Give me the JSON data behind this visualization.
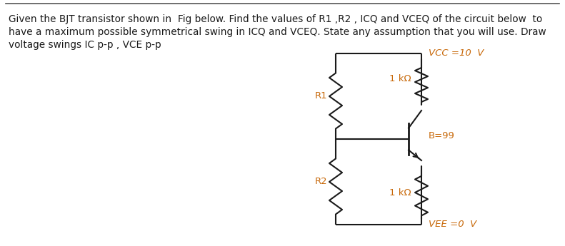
{
  "title_text_line1": "Given the BJT transistor shown in  Fig below. Find the values of R1 ,R2 , ICQ and VCEQ of the circuit below  to",
  "title_text_line2": "have a maximum possible symmetrical swing in ICQ and VCEQ. State any assumption that you will use. Draw",
  "title_text_line3": "voltage swings IC p-p , VCE p-p",
  "background_color": "#ffffff",
  "text_color": "#1a1a1a",
  "circuit_color": "#1a1a1a",
  "vcc_label": "VCC =10  V",
  "vee_label": "VEE =0  V",
  "r1_label": "R1",
  "r2_label": "R2",
  "rc_label": "1 kΩ",
  "re_label": "1 kΩ",
  "bjt_label": "B=99",
  "label_color": "#c8690a",
  "font_size_text": 9.8,
  "font_size_labels": 9.5,
  "top_line_color": "#555555"
}
